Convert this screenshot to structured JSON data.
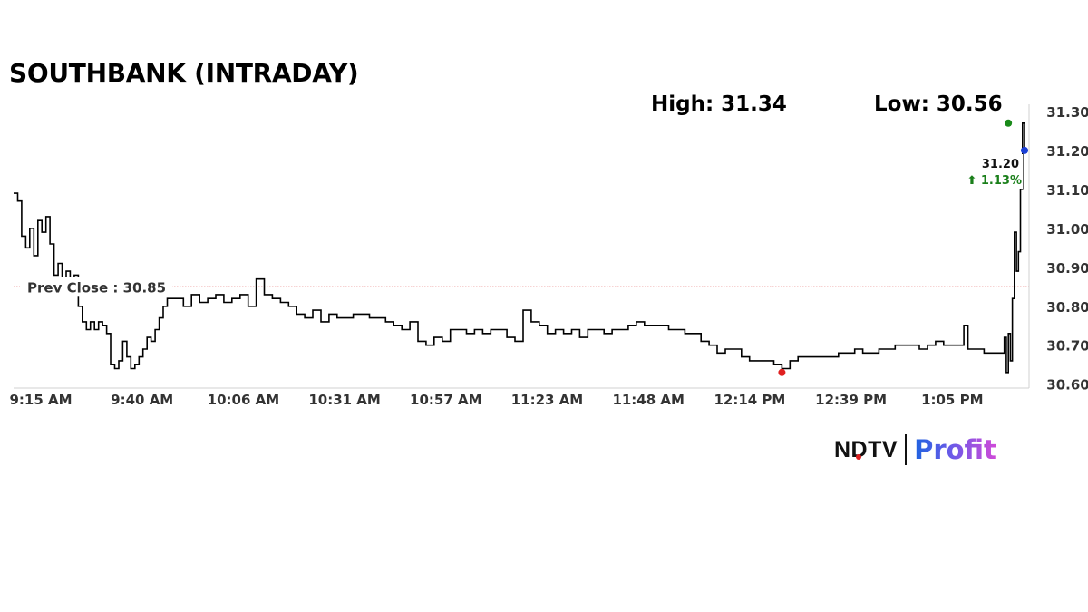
{
  "title": "SOUTHBANK (INTRADAY)",
  "stats": {
    "high_label": "High: 31.34",
    "low_label": "Low: 30.56"
  },
  "logo": {
    "brand": "NDTV",
    "product": "Profit"
  },
  "chart_data": {
    "type": "line",
    "x_tick_labels": [
      "9:15 AM",
      "9:40 AM",
      "10:06 AM",
      "10:31 AM",
      "10:57 AM",
      "11:23 AM",
      "11:48 AM",
      "12:14 PM",
      "12:39 PM",
      "1:05 PM"
    ],
    "y_ticks": [
      30.6,
      30.7,
      30.8,
      30.9,
      31.0,
      31.1,
      31.2,
      31.3
    ],
    "ylim": [
      30.59,
      31.33
    ],
    "xlim": [
      0,
      250
    ],
    "reference_line": {
      "label": "Prev Close : 30.85",
      "value": 30.85,
      "color": "#e05050"
    },
    "last": {
      "value": "31.20",
      "change": "⬆ 1.13%",
      "color": "#1a7f1a"
    },
    "markers": [
      {
        "name": "high",
        "x": 246,
        "y": 31.27,
        "color": "#1a8a1a"
      },
      {
        "name": "low",
        "x": 190,
        "y": 30.63,
        "color": "#e02020"
      },
      {
        "name": "last",
        "x": 250,
        "y": 31.2,
        "color": "#1a3fd6"
      }
    ],
    "series": [
      {
        "color": "#000000",
        "points": [
          [
            0,
            31.09
          ],
          [
            1,
            31.07
          ],
          [
            2,
            30.98
          ],
          [
            3,
            30.95
          ],
          [
            4,
            31.0
          ],
          [
            5,
            30.93
          ],
          [
            6,
            31.02
          ],
          [
            7,
            30.99
          ],
          [
            8,
            31.03
          ],
          [
            9,
            30.96
          ],
          [
            10,
            30.88
          ],
          [
            11,
            30.91
          ],
          [
            12,
            30.87
          ],
          [
            13,
            30.89
          ],
          [
            14,
            30.87
          ],
          [
            15,
            30.88
          ],
          [
            16,
            30.8
          ],
          [
            17,
            30.76
          ],
          [
            18,
            30.74
          ],
          [
            19,
            30.76
          ],
          [
            20,
            30.74
          ],
          [
            21,
            30.76
          ],
          [
            22,
            30.75
          ],
          [
            23,
            30.73
          ],
          [
            24,
            30.65
          ],
          [
            25,
            30.64
          ],
          [
            26,
            30.66
          ],
          [
            27,
            30.71
          ],
          [
            28,
            30.67
          ],
          [
            29,
            30.64
          ],
          [
            30,
            30.65
          ],
          [
            31,
            30.67
          ],
          [
            32,
            30.69
          ],
          [
            33,
            30.72
          ],
          [
            34,
            30.71
          ],
          [
            35,
            30.74
          ],
          [
            36,
            30.77
          ],
          [
            37,
            30.8
          ],
          [
            38,
            30.82
          ],
          [
            40,
            30.82
          ],
          [
            42,
            30.8
          ],
          [
            44,
            30.83
          ],
          [
            46,
            30.81
          ],
          [
            48,
            30.82
          ],
          [
            50,
            30.83
          ],
          [
            52,
            30.81
          ],
          [
            54,
            30.82
          ],
          [
            56,
            30.83
          ],
          [
            58,
            30.8
          ],
          [
            60,
            30.87
          ],
          [
            62,
            30.83
          ],
          [
            64,
            30.82
          ],
          [
            66,
            30.81
          ],
          [
            68,
            30.8
          ],
          [
            70,
            30.78
          ],
          [
            72,
            30.77
          ],
          [
            74,
            30.79
          ],
          [
            76,
            30.76
          ],
          [
            78,
            30.78
          ],
          [
            80,
            30.77
          ],
          [
            82,
            30.77
          ],
          [
            84,
            30.78
          ],
          [
            86,
            30.78
          ],
          [
            88,
            30.77
          ],
          [
            90,
            30.77
          ],
          [
            92,
            30.76
          ],
          [
            94,
            30.75
          ],
          [
            96,
            30.74
          ],
          [
            98,
            30.76
          ],
          [
            100,
            30.71
          ],
          [
            102,
            30.7
          ],
          [
            104,
            30.72
          ],
          [
            106,
            30.71
          ],
          [
            108,
            30.74
          ],
          [
            110,
            30.74
          ],
          [
            112,
            30.73
          ],
          [
            114,
            30.74
          ],
          [
            116,
            30.73
          ],
          [
            118,
            30.74
          ],
          [
            120,
            30.74
          ],
          [
            122,
            30.72
          ],
          [
            124,
            30.71
          ],
          [
            126,
            30.79
          ],
          [
            128,
            30.76
          ],
          [
            130,
            30.75
          ],
          [
            132,
            30.73
          ],
          [
            134,
            30.74
          ],
          [
            136,
            30.73
          ],
          [
            138,
            30.74
          ],
          [
            140,
            30.72
          ],
          [
            142,
            30.74
          ],
          [
            144,
            30.74
          ],
          [
            146,
            30.73
          ],
          [
            148,
            30.74
          ],
          [
            150,
            30.74
          ],
          [
            152,
            30.75
          ],
          [
            154,
            30.76
          ],
          [
            156,
            30.75
          ],
          [
            158,
            30.75
          ],
          [
            160,
            30.75
          ],
          [
            162,
            30.74
          ],
          [
            164,
            30.74
          ],
          [
            166,
            30.73
          ],
          [
            168,
            30.73
          ],
          [
            170,
            30.71
          ],
          [
            172,
            30.7
          ],
          [
            174,
            30.68
          ],
          [
            176,
            30.69
          ],
          [
            178,
            30.69
          ],
          [
            180,
            30.67
          ],
          [
            182,
            30.66
          ],
          [
            184,
            30.66
          ],
          [
            186,
            30.66
          ],
          [
            188,
            30.65
          ],
          [
            190,
            30.64
          ],
          [
            192,
            30.66
          ],
          [
            194,
            30.67
          ],
          [
            196,
            30.67
          ],
          [
            198,
            30.67
          ],
          [
            200,
            30.67
          ],
          [
            202,
            30.67
          ],
          [
            204,
            30.68
          ],
          [
            206,
            30.68
          ],
          [
            208,
            30.69
          ],
          [
            210,
            30.68
          ],
          [
            212,
            30.68
          ],
          [
            214,
            30.69
          ],
          [
            216,
            30.69
          ],
          [
            218,
            30.7
          ],
          [
            220,
            30.7
          ],
          [
            222,
            30.7
          ],
          [
            224,
            30.69
          ],
          [
            226,
            30.7
          ],
          [
            228,
            30.71
          ],
          [
            230,
            30.7
          ],
          [
            232,
            30.7
          ],
          [
            234,
            30.7
          ],
          [
            235,
            30.75
          ],
          [
            236,
            30.69
          ],
          [
            238,
            30.69
          ],
          [
            240,
            30.68
          ],
          [
            242,
            30.68
          ],
          [
            244,
            30.68
          ],
          [
            245,
            30.72
          ],
          [
            245.5,
            30.63
          ],
          [
            246,
            30.73
          ],
          [
            246.5,
            30.66
          ],
          [
            247,
            30.82
          ],
          [
            247.5,
            30.99
          ],
          [
            248,
            30.89
          ],
          [
            248.5,
            30.94
          ],
          [
            249,
            31.1
          ],
          [
            249.5,
            31.27
          ],
          [
            250,
            31.2
          ]
        ]
      }
    ]
  }
}
